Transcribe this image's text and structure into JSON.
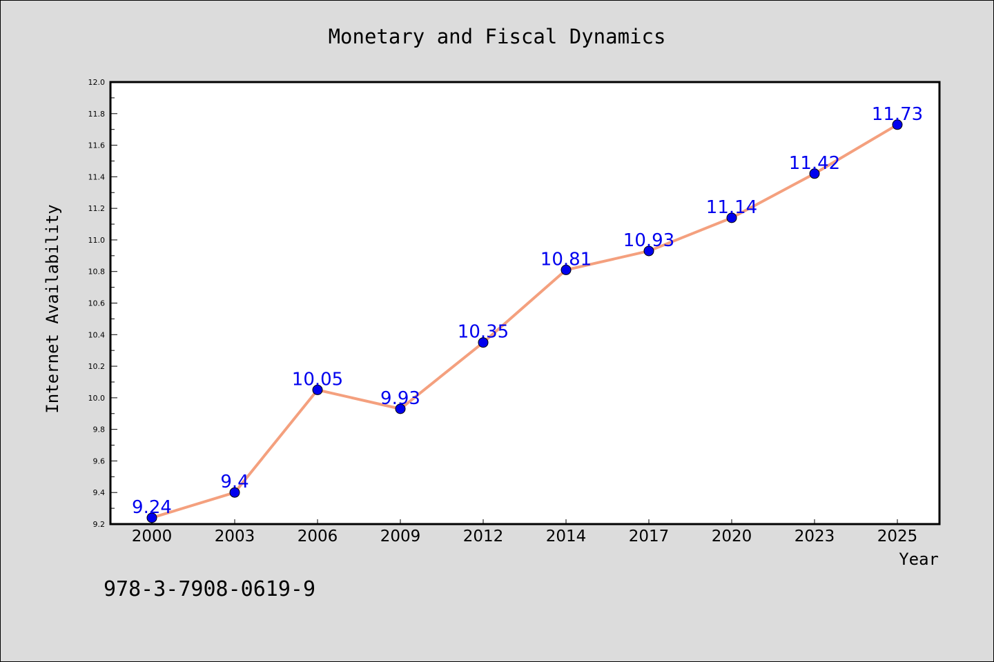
{
  "chart_data": {
    "type": "line",
    "title": "Monetary and Fiscal Dynamics",
    "xlabel": "Year",
    "ylabel": "Internet Availability",
    "categories": [
      "2000",
      "2003",
      "2006",
      "2009",
      "2012",
      "2014",
      "2017",
      "2020",
      "2023",
      "2025"
    ],
    "series": [
      {
        "values": [
          9.24,
          9.4,
          10.05,
          9.93,
          10.35,
          10.81,
          10.93,
          11.14,
          11.42,
          11.73
        ],
        "labels": [
          "9.24",
          "9.4",
          "10.05",
          "9.93",
          "10.35",
          "10.81",
          "10.93",
          "11.14",
          "11.42",
          "11.73"
        ],
        "line_color": "#f4a07e",
        "marker_color": "#0000ee"
      }
    ],
    "ylim": [
      9.2,
      12.0
    ],
    "yticks": [
      "9.2",
      "9.4",
      "9.6",
      "9.8",
      "10.0",
      "10.2",
      "10.4",
      "10.6",
      "10.8",
      "11.0",
      "11.2",
      "11.4",
      "11.6",
      "11.8",
      "12.0"
    ],
    "grid": false,
    "legend": "none"
  },
  "annotation": {
    "isbn": "978-3-7908-0619-9"
  }
}
